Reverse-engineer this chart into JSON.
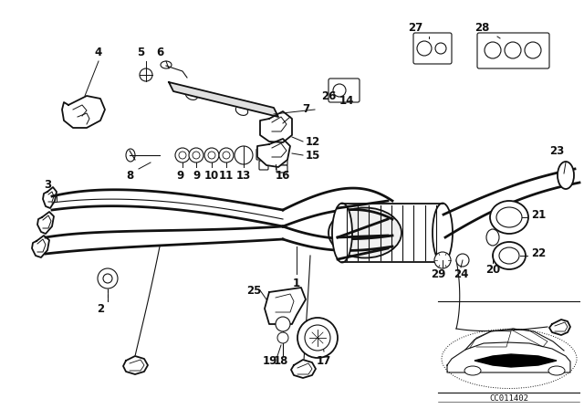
{
  "bg_color": "#ffffff",
  "fg_color": "#111111",
  "diagram_code": "CC011402",
  "figsize": [
    6.4,
    4.48
  ],
  "dpi": 100
}
